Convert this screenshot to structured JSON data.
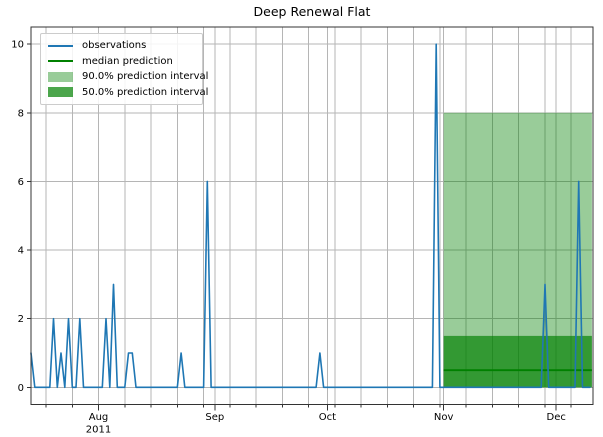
{
  "title": "Deep Renewal Flat",
  "legend": [
    {
      "label": "observations",
      "handle": "line",
      "color": "#1f77b4"
    },
    {
      "label": "median prediction",
      "handle": "line",
      "color": "#008000"
    },
    {
      "label": "90.0% prediction interval",
      "handle": "patch",
      "color": "rgba(0,128,0,0.4)"
    },
    {
      "label": "50.0% prediction interval",
      "handle": "patch",
      "color": "rgba(0,128,0,0.7)"
    }
  ],
  "colors": {
    "observations": "#1f77b4",
    "median": "#008000",
    "band90": "rgba(0,128,0,0.4)",
    "band50": "rgba(0,128,0,0.667)",
    "grid": "#b5b5b5",
    "spine": "#333333",
    "tick_label": "#000000"
  },
  "chart_data": {
    "type": "line",
    "title": "Deep Renewal Flat",
    "x_unit": "day",
    "x_start_date": "2011-07-14",
    "prediction_start_day": 110,
    "xlim": [
      0,
      149.8
    ],
    "ylim": [
      -0.5,
      10.5
    ],
    "yticks": [
      0,
      2,
      4,
      6,
      8,
      10
    ],
    "x_major_ticks": [
      {
        "day": 18,
        "label": "Aug",
        "sublabel": "2011"
      },
      {
        "day": 49,
        "label": "Sep"
      },
      {
        "day": 79,
        "label": "Oct"
      },
      {
        "day": 110,
        "label": "Nov"
      },
      {
        "day": 140,
        "label": "Dec"
      }
    ],
    "x_minor_tick_days": [
      4,
      11,
      18,
      25,
      32,
      39,
      46,
      53,
      60,
      67,
      74,
      81,
      88,
      95,
      102,
      109,
      116,
      123,
      130,
      137,
      144
    ],
    "series": [
      {
        "name": "observations",
        "color": "#1f77b4",
        "values": [
          1,
          0,
          0,
          0,
          0,
          0,
          2,
          0,
          1,
          0,
          2,
          0,
          0,
          2,
          0,
          0,
          0,
          0,
          0,
          0,
          2,
          0,
          3,
          0,
          0,
          0,
          1,
          1,
          0,
          0,
          0,
          0,
          0,
          0,
          0,
          0,
          0,
          0,
          0,
          0,
          1,
          0,
          0,
          0,
          0,
          0,
          0,
          6,
          0,
          0,
          0,
          0,
          0,
          0,
          0,
          0,
          0,
          0,
          0,
          0,
          0,
          0,
          0,
          0,
          0,
          0,
          0,
          0,
          0,
          0,
          0,
          0,
          0,
          0,
          0,
          0,
          0,
          1,
          0,
          0,
          0,
          0,
          0,
          0,
          0,
          0,
          0,
          0,
          0,
          0,
          0,
          0,
          0,
          0,
          0,
          0,
          0,
          0,
          0,
          0,
          0,
          0,
          0,
          0,
          0,
          0,
          0,
          0,
          10,
          0,
          0,
          0,
          0,
          0,
          0,
          0,
          0,
          0,
          0,
          0,
          0,
          0,
          0,
          0,
          0,
          0,
          0,
          0,
          0,
          0,
          0,
          0,
          0,
          0,
          0,
          0,
          0,
          3,
          0,
          0,
          0,
          0,
          0,
          0,
          0,
          0,
          6,
          0,
          0,
          0
        ]
      },
      {
        "name": "median prediction",
        "color": "#008000",
        "x_start": 110,
        "x_end": 149.5,
        "value": 0.5
      }
    ],
    "intervals": [
      {
        "name": "90.0% prediction interval",
        "x_start": 110,
        "x_end": 149.5,
        "low": 0,
        "high": 8,
        "fill": "rgba(0,128,0,0.4)"
      },
      {
        "name": "50.0% prediction interval",
        "x_start": 110,
        "x_end": 149.5,
        "low": 0,
        "high": 1.5,
        "fill": "rgba(0,128,0,0.667)"
      }
    ],
    "grid": true,
    "legend_position": "upper-left"
  }
}
